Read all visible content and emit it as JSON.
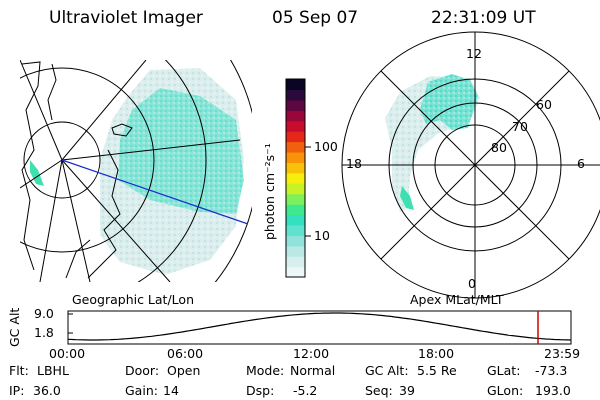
{
  "header": {
    "instrument": "Ultraviolet Imager",
    "date": "05 Sep 07",
    "time": "22:31:09 UT"
  },
  "geo_panel": {
    "label": "Geographic Lat/Lon"
  },
  "polar_panel": {
    "label": "Apex MLat/MLT",
    "mlt_labels": [
      "12",
      "18",
      "6",
      "0"
    ],
    "lat_labels": [
      "60",
      "70",
      "80"
    ]
  },
  "colorbar": {
    "unit_label": "photon cm⁻²s⁻¹",
    "ticks": [
      "100",
      "10"
    ],
    "colors": [
      "#eef7f7",
      "#d7efee",
      "#b9e8e5",
      "#8fe3dc",
      "#5fe2d0",
      "#33e0c0",
      "#3fe88e",
      "#7ff05a",
      "#c8f226",
      "#f6ee0c",
      "#f9c20a",
      "#f8930a",
      "#f1600c",
      "#e5271a",
      "#c80c2c",
      "#99063a",
      "#5c0642",
      "#2a0a3a",
      "#0a0524"
    ]
  },
  "altitude_panel": {
    "ylabel": "GC Alt",
    "yticks": [
      "9.0",
      "1.8"
    ],
    "xticks": [
      "00:00",
      "06:00",
      "12:00",
      "18:00",
      "23:59"
    ],
    "marker_color": "#d00000"
  },
  "footer": {
    "rows": [
      [
        {
          "label": "Flt:",
          "value": "LBHL"
        },
        {
          "label": "Door:",
          "value": "Open"
        },
        {
          "label": "Mode:",
          "value": "Normal"
        },
        {
          "label": "GC Alt:",
          "value": "5.5 Re"
        },
        {
          "label": "GLat:",
          "value": "-73.3"
        }
      ],
      [
        {
          "label": "IP:",
          "value": "36.0"
        },
        {
          "label": "Gain:",
          "value": "14"
        },
        {
          "label": "Dsp:",
          "value": "-5.2"
        },
        {
          "label": "Seq:",
          "value": "39"
        },
        {
          "label": "GLon:",
          "value": "193.0"
        }
      ]
    ]
  },
  "colors": {
    "aurora": "#45e0c8",
    "aurora_light": "#cfe9e7",
    "track": "#1a2bd0"
  }
}
